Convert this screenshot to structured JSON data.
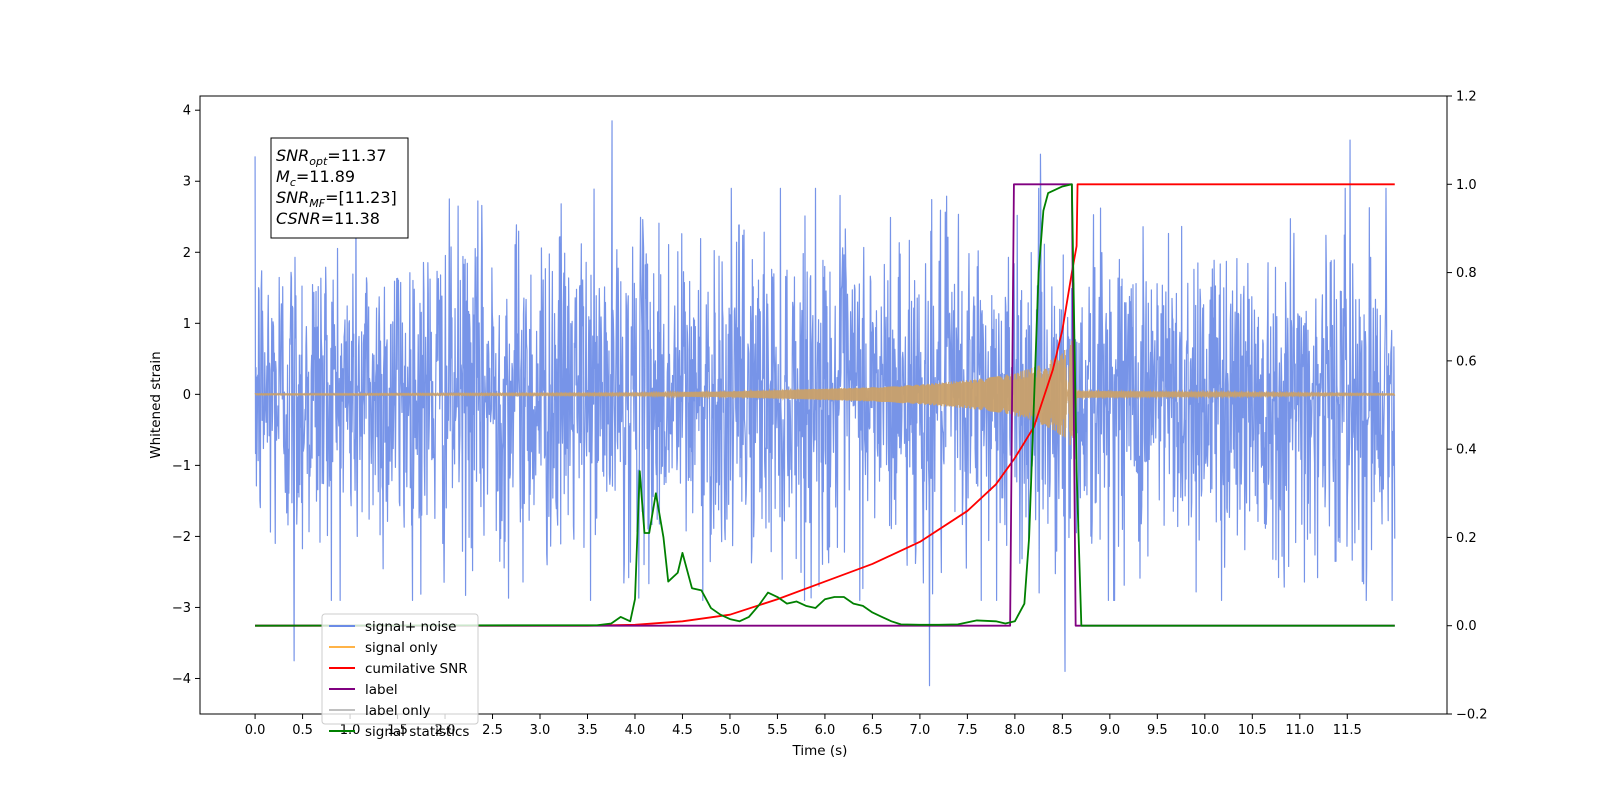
{
  "chart_data": {
    "type": "line",
    "xlabel": "Time (s)",
    "ylabel": "Whitened strain",
    "xlim": [
      -0.58,
      12.55
    ],
    "ylim": [
      -4.5,
      4.2
    ],
    "y2lim": [
      -0.2,
      1.2
    ],
    "grid": false,
    "x_ticks": [
      0.0,
      0.5,
      1.0,
      1.5,
      2.0,
      2.5,
      3.0,
      3.5,
      4.0,
      4.5,
      5.0,
      5.5,
      6.0,
      6.5,
      7.0,
      7.5,
      8.0,
      8.5,
      9.0,
      9.5,
      10.0,
      10.5,
      11.0,
      11.5
    ],
    "x_tick_labels": [
      "0.0",
      "0.5",
      "1.0",
      "1.5",
      "2.0",
      "2.5",
      "3.0",
      "3.5",
      "4.0",
      "4.5",
      "5.0",
      "5.5",
      "6.0",
      "6.5",
      "7.0",
      "7.5",
      "8.0",
      "8.5",
      "9.0",
      "9.5",
      "10.0",
      "10.5",
      "11.0",
      "11.5"
    ],
    "y_ticks": [
      4,
      3,
      2,
      1,
      0,
      -1,
      -2,
      -3,
      -4
    ],
    "y_tick_labels": [
      "4",
      "3",
      "2",
      "1",
      "0",
      "−1",
      "−2",
      "−3",
      "−4"
    ],
    "y2_ticks": [
      1.2,
      1.0,
      0.8,
      0.6,
      0.4,
      0.2,
      0.0,
      -0.2
    ],
    "y2_tick_labels": [
      "1.2",
      "1.0",
      "0.8",
      "0.6",
      "0.4",
      "0.2",
      "0.0",
      "−0.2"
    ],
    "legend_position": "lower-left",
    "legend": [
      {
        "name": "signal+ noise",
        "color": "#6b8be6"
      },
      {
        "name": "signal only",
        "color": "#ffb347"
      },
      {
        "name": "cumilative SNR",
        "color": "#ff0000"
      },
      {
        "name": "label",
        "color": "#800080"
      },
      {
        "name": "label only",
        "color": "#c0c0c0"
      },
      {
        "name": "signal statistics",
        "color": "#008000"
      }
    ],
    "stats_box": [
      {
        "base": "SNR",
        "sub": "opt",
        "value": "=11.37"
      },
      {
        "base": "M",
        "sub": "c",
        "value": "=11.89"
      },
      {
        "base": "SNR",
        "sub": "MF",
        "value": "=[11.23]"
      },
      {
        "base": "CSNR",
        "sub": "",
        "value": "=11.38"
      }
    ],
    "series": [
      {
        "name": "signal+ noise",
        "axis": "left",
        "color": "#6b8be6",
        "kind": "noise",
        "x_range": [
          0.0,
          12.0
        ],
        "amplitude_typical": 1.2,
        "notable_peaks": [
          [
            0.0,
            3.35
          ],
          [
            0.41,
            -3.75
          ],
          [
            3.76,
            3.85
          ],
          [
            7.1,
            -4.1
          ],
          [
            8.27,
            3.38
          ],
          [
            8.53,
            -3.9
          ],
          [
            11.53,
            3.58
          ]
        ]
      },
      {
        "name": "signal only",
        "axis": "left",
        "color": "#c9a06a",
        "kind": "chirp",
        "x": [
          0.0,
          4.0,
          5.0,
          6.0,
          6.5,
          7.0,
          7.5,
          7.8,
          8.0,
          8.2,
          8.4,
          8.55,
          8.62,
          8.65,
          12.0
        ],
        "envelope": [
          0.01,
          0.02,
          0.04,
          0.08,
          0.1,
          0.14,
          0.2,
          0.25,
          0.3,
          0.38,
          0.5,
          0.65,
          0.8,
          0.05,
          0.01
        ]
      },
      {
        "name": "cumilative SNR",
        "axis": "right",
        "color": "#ff0000",
        "x": [
          0.0,
          3.5,
          4.0,
          4.5,
          5.0,
          5.5,
          6.0,
          6.5,
          7.0,
          7.5,
          7.8,
          8.0,
          8.2,
          8.4,
          8.5,
          8.6,
          8.65,
          8.66,
          12.0
        ],
        "y": [
          0.0,
          0.0,
          0.002,
          0.01,
          0.025,
          0.06,
          0.1,
          0.14,
          0.19,
          0.26,
          0.32,
          0.38,
          0.45,
          0.58,
          0.67,
          0.8,
          0.86,
          1.0,
          1.0
        ]
      },
      {
        "name": "label",
        "axis": "right",
        "color": "#800080",
        "x": [
          0.0,
          7.95,
          7.99,
          8.6,
          8.64,
          12.0
        ],
        "y": [
          0.0,
          0.0,
          1.0,
          1.0,
          0.0,
          0.0
        ]
      },
      {
        "name": "signal statistics",
        "axis": "right",
        "color": "#008000",
        "x": [
          0.0,
          3.0,
          3.6,
          3.75,
          3.85,
          3.95,
          4.0,
          4.05,
          4.1,
          4.15,
          4.22,
          4.3,
          4.35,
          4.45,
          4.5,
          4.6,
          4.7,
          4.8,
          4.9,
          5.0,
          5.1,
          5.2,
          5.3,
          5.4,
          5.5,
          5.6,
          5.7,
          5.8,
          5.9,
          6.0,
          6.1,
          6.2,
          6.3,
          6.4,
          6.5,
          6.6,
          6.7,
          6.8,
          7.0,
          7.2,
          7.4,
          7.6,
          7.8,
          7.9,
          8.0,
          8.1,
          8.15,
          8.2,
          8.25,
          8.3,
          8.35,
          8.5,
          8.6,
          8.65,
          8.7,
          12.0
        ],
        "y": [
          0.0,
          0.001,
          0.001,
          0.005,
          0.02,
          0.01,
          0.06,
          0.35,
          0.21,
          0.21,
          0.3,
          0.2,
          0.1,
          0.12,
          0.165,
          0.085,
          0.08,
          0.04,
          0.025,
          0.015,
          0.01,
          0.02,
          0.045,
          0.075,
          0.065,
          0.05,
          0.055,
          0.045,
          0.04,
          0.06,
          0.065,
          0.065,
          0.05,
          0.045,
          0.03,
          0.02,
          0.01,
          0.003,
          0.002,
          0.002,
          0.003,
          0.012,
          0.01,
          0.005,
          0.01,
          0.05,
          0.2,
          0.5,
          0.8,
          0.94,
          0.98,
          0.995,
          1.0,
          0.35,
          0.0,
          0.0
        ]
      }
    ]
  }
}
